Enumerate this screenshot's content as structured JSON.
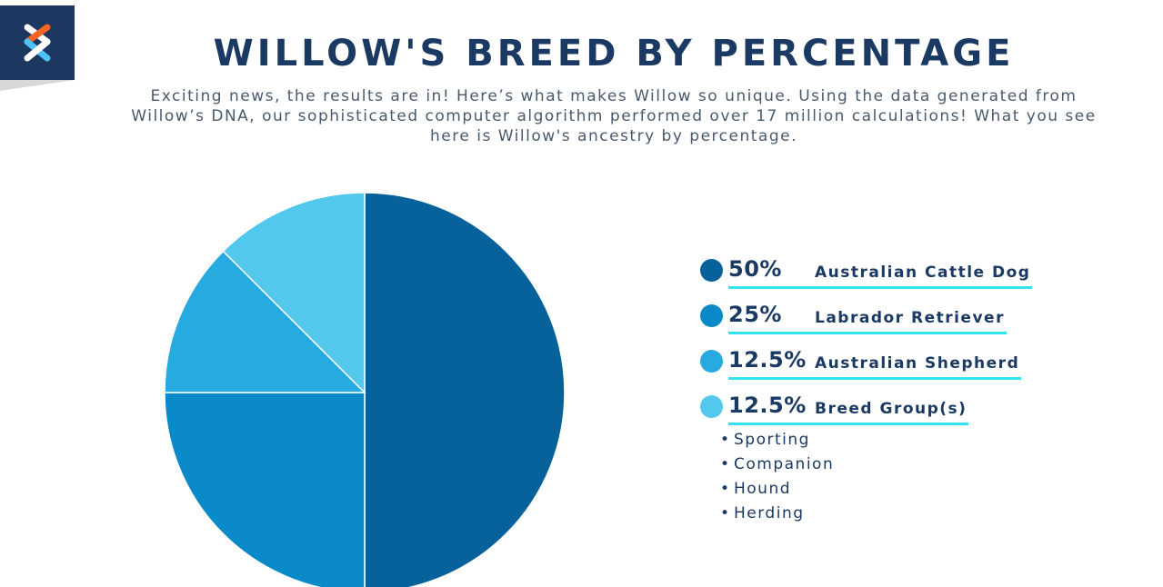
{
  "header": {
    "title": "WILLOW'S BREED BY PERCENTAGE",
    "subtitle": "Exciting news, the results are in! Here’s what makes Willow so unique. Using the data generated from Willow’s DNA, our sophisticated computer algorithm performed over 17 million calculations! What you see here is Willow's ancestry by percentage."
  },
  "logo": {
    "icon": "dna-x-logo-icon",
    "bg_color": "#1c3760"
  },
  "chart_data": {
    "type": "pie",
    "title": "WILLOW'S BREED BY PERCENTAGE",
    "start_angle_deg": 0,
    "direction": "clockwise",
    "slices": [
      {
        "label": "Australian Cattle Dog",
        "value": 50,
        "pct_label": "50%",
        "color": "#07619a"
      },
      {
        "label": "Labrador Retriever",
        "value": 25,
        "pct_label": "25%",
        "color": "#0a8ac9"
      },
      {
        "label": "Australian Shepherd",
        "value": 12.5,
        "pct_label": "12.5%",
        "color": "#26aae0"
      },
      {
        "label": "Breed Group(s)",
        "value": 12.5,
        "pct_label": "12.5%",
        "color": "#52c8ec"
      }
    ],
    "legend_position": "right"
  },
  "breed_groups": [
    "Sporting",
    "Companion",
    "Hound",
    "Herding"
  ]
}
